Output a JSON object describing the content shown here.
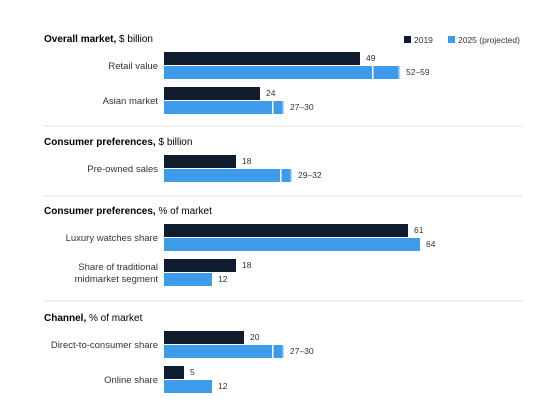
{
  "legend": {
    "items": [
      {
        "label": "2019",
        "color": "#0f1c2e"
      },
      {
        "label": "2025 (projected)",
        "color": "#3d9be9"
      }
    ]
  },
  "chart_data": {
    "type": "bar",
    "orientation": "horizontal",
    "series": [
      {
        "name": "2019",
        "color": "#0f1c2e"
      },
      {
        "name": "2025 (projected)",
        "color": "#3d9be9"
      }
    ],
    "sections": [
      {
        "title_bold": "Overall market,",
        "title_unit": " $ billion",
        "scale_max": 64,
        "rows": [
          {
            "label": [
              "Retail value"
            ],
            "v2019": 49,
            "v2019_label": "49",
            "v2025": [
              52,
              59
            ],
            "v2025_label": "52–59"
          },
          {
            "label": [
              "Asian market"
            ],
            "v2019": 24,
            "v2019_label": "24",
            "v2025": [
              27,
              30
            ],
            "v2025_label": "27–30"
          }
        ]
      },
      {
        "title_bold": "Consumer preferences,",
        "title_unit": " $ billion",
        "scale_max": 64,
        "rows": [
          {
            "label": [
              "Pre-owned sales"
            ],
            "v2019": 18,
            "v2019_label": "18",
            "v2025": [
              29,
              32
            ],
            "v2025_label": "29–32"
          }
        ]
      },
      {
        "title_bold": "Consumer preferences,",
        "title_unit": " % of market",
        "scale_max": 64,
        "rows": [
          {
            "label": [
              "Luxury watches share"
            ],
            "v2019": 61,
            "v2019_label": "61",
            "v2025": 64,
            "v2025_label": "64"
          },
          {
            "label": [
              "Share of traditional",
              "midmarket segment"
            ],
            "v2019": 18,
            "v2019_label": "18",
            "v2025": 12,
            "v2025_label": "12"
          }
        ]
      },
      {
        "title_bold": "Channel,",
        "title_unit": " % of market",
        "scale_max": 64,
        "rows": [
          {
            "label": [
              "Direct-to-consumer share"
            ],
            "v2019": 20,
            "v2019_label": "20",
            "v2025": [
              27,
              30
            ],
            "v2025_label": "27–30"
          },
          {
            "label": [
              "Online share"
            ],
            "v2019": 5,
            "v2019_label": "5",
            "v2025": 12,
            "v2025_label": "12"
          }
        ]
      }
    ]
  }
}
